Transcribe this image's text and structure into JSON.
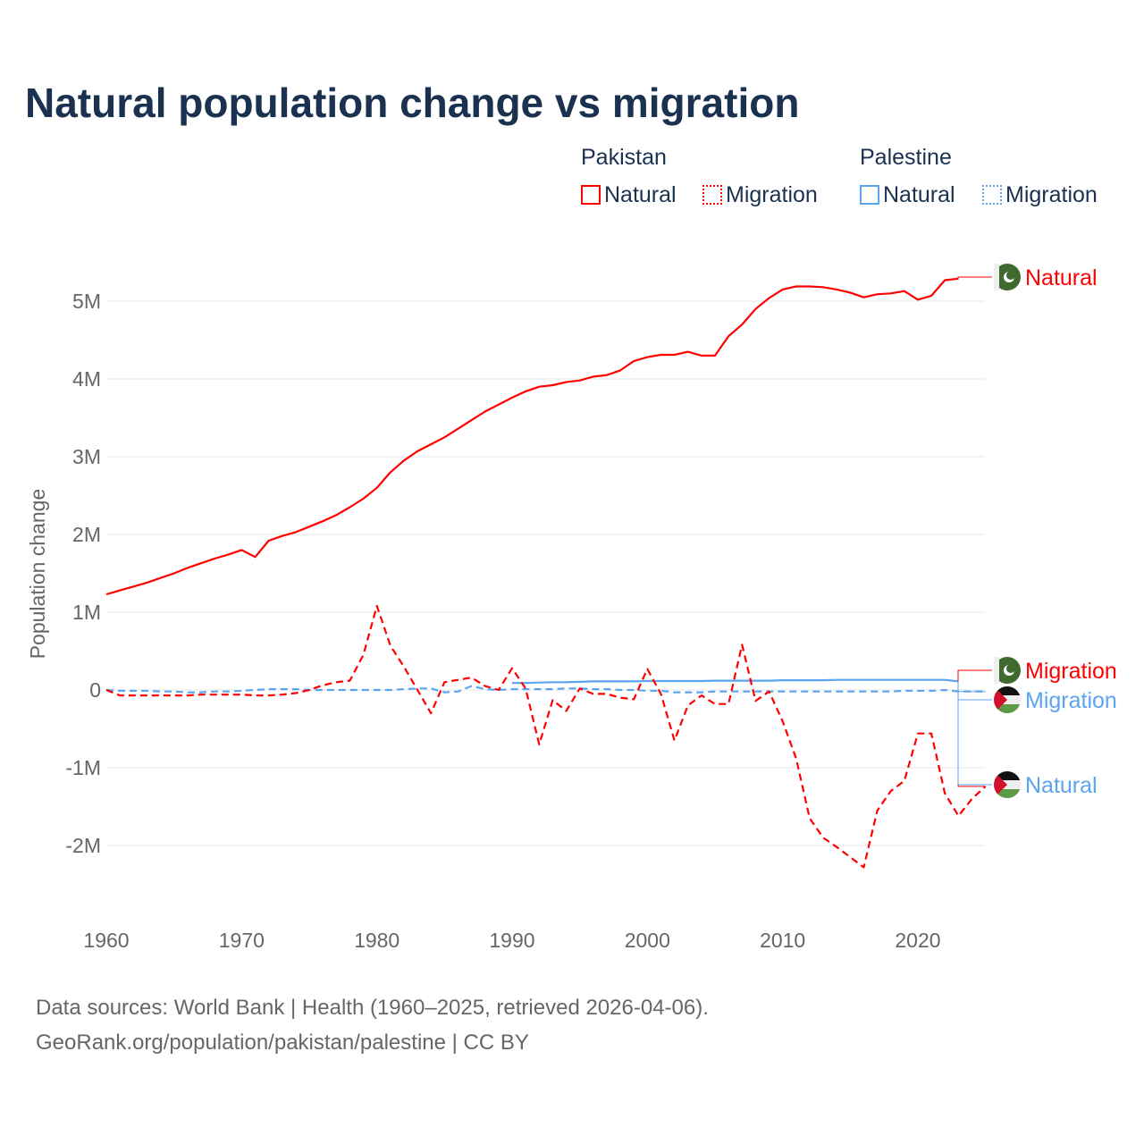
{
  "chart_data": {
    "type": "line",
    "title": "Natural population change vs migration",
    "ylabel": "Population change",
    "xlabel": "",
    "xlim": [
      1960,
      2025
    ],
    "ylim": [
      -2.8,
      5.6
    ],
    "x_ticks": [
      "1960",
      "1970",
      "1980",
      "1990",
      "2000",
      "2010",
      "2020"
    ],
    "y_ticks": [
      {
        "v": 5,
        "label": "5M"
      },
      {
        "v": 4,
        "label": "4M"
      },
      {
        "v": 3,
        "label": "3M"
      },
      {
        "v": 2,
        "label": "2M"
      },
      {
        "v": 1,
        "label": "1M"
      },
      {
        "v": 0,
        "label": "0"
      },
      {
        "v": -1,
        "label": "-1M"
      },
      {
        "v": -2,
        "label": "-2M"
      }
    ],
    "grid": true,
    "units": "millions",
    "legend": {
      "placement": "top-right",
      "groups": [
        {
          "title": "Pakistan",
          "items": [
            "Natural",
            "Migration"
          ]
        },
        {
          "title": "Palestine",
          "items": [
            "Natural",
            "Migration"
          ]
        }
      ]
    },
    "series": [
      {
        "name": "Pakistan Natural",
        "label": "Natural",
        "color": "#ff0000",
        "dash": false,
        "start": 1960,
        "values": [
          1.23,
          1.28,
          1.33,
          1.38,
          1.44,
          1.5,
          1.57,
          1.63,
          1.69,
          1.74,
          1.8,
          1.71,
          1.92,
          1.98,
          2.03,
          2.1,
          2.17,
          2.25,
          2.35,
          2.46,
          2.6,
          2.8,
          2.95,
          3.07,
          3.16,
          3.25,
          3.36,
          3.47,
          3.58,
          3.67,
          3.76,
          3.84,
          3.9,
          3.92,
          3.96,
          3.98,
          4.03,
          4.05,
          4.11,
          4.23,
          4.28,
          4.31,
          4.31,
          4.35,
          4.3,
          4.3,
          4.55,
          4.7,
          4.9,
          5.04,
          5.15,
          5.19,
          5.19,
          5.18,
          5.15,
          5.11,
          5.05,
          5.09,
          5.1,
          5.13,
          5.02,
          5.07,
          5.27,
          5.29
        ]
      },
      {
        "name": "Pakistan Migration",
        "label": "Migration",
        "color": "#ff0000",
        "dash": true,
        "start": 1960,
        "values": [
          0,
          -0.07,
          -0.07,
          -0.07,
          -0.07,
          -0.07,
          -0.07,
          -0.06,
          -0.06,
          -0.06,
          -0.06,
          -0.07,
          -0.07,
          -0.06,
          -0.04,
          0,
          0.06,
          0.1,
          0.12,
          0.45,
          1.08,
          0.57,
          0.3,
          0,
          -0.3,
          0.1,
          0.13,
          0.16,
          0.05,
          0,
          0.28,
          0.02,
          -0.7,
          -0.13,
          -0.27,
          0.02,
          -0.05,
          -0.05,
          -0.1,
          -0.12,
          0.27,
          -0.05,
          -0.65,
          -0.2,
          -0.07,
          -0.18,
          -0.18,
          0.58,
          -0.14,
          -0.02,
          -0.4,
          -0.88,
          -1.65,
          -1.9,
          -2.02,
          -2.15,
          -2.28,
          -1.55,
          -1.3,
          -1.17,
          -0.56,
          -0.56,
          -1.33,
          -1.62,
          -1.4,
          -1.24
        ]
      },
      {
        "name": "Palestine Natural",
        "label": "Natural",
        "color": "#5ba4ee",
        "dash": false,
        "start": 1990,
        "values": [
          0.09,
          0.09,
          0.095,
          0.1,
          0.1,
          0.105,
          0.11,
          0.11,
          0.11,
          0.11,
          0.115,
          0.115,
          0.115,
          0.115,
          0.115,
          0.12,
          0.12,
          0.12,
          0.12,
          0.12,
          0.125,
          0.125,
          0.125,
          0.125,
          0.13,
          0.13,
          0.13,
          0.13,
          0.13,
          0.13,
          0.13,
          0.13,
          0.13,
          0.11
        ]
      },
      {
        "name": "Palestine Migration",
        "label": "Migration",
        "color": "#5ba4ee",
        "dash": true,
        "start": 1960,
        "values": [
          0,
          -0.01,
          -0.01,
          -0.01,
          -0.02,
          -0.02,
          -0.03,
          -0.03,
          -0.02,
          -0.02,
          -0.01,
          0,
          0.01,
          0.01,
          0.01,
          0,
          0,
          0,
          0,
          0,
          0,
          0,
          0.01,
          0.02,
          0.02,
          -0.03,
          -0.02,
          0.05,
          0.01,
          0,
          0.01,
          0.01,
          0.01,
          0.01,
          0.02,
          0.02,
          0.01,
          0.01,
          0,
          0,
          -0.01,
          -0.01,
          -0.03,
          -0.03,
          -0.03,
          -0.02,
          -0.02,
          -0.02,
          -0.02,
          -0.02,
          -0.02,
          -0.02,
          -0.02,
          -0.02,
          -0.02,
          -0.02,
          -0.02,
          -0.02,
          -0.02,
          -0.01,
          -0.01,
          -0.01,
          0,
          -0.02,
          -0.02,
          -0.02
        ]
      }
    ]
  },
  "legend_titles": {
    "pakistan": "Pakistan",
    "palestine": "Palestine"
  },
  "legend_items": {
    "natural": "Natural",
    "migration": "Migration"
  },
  "footer": {
    "line1": "Data sources: World Bank | Health (1960–2025, retrieved 2026-04-06).",
    "line2": "GeoRank.org/population/pakistan/palestine | CC BY"
  }
}
